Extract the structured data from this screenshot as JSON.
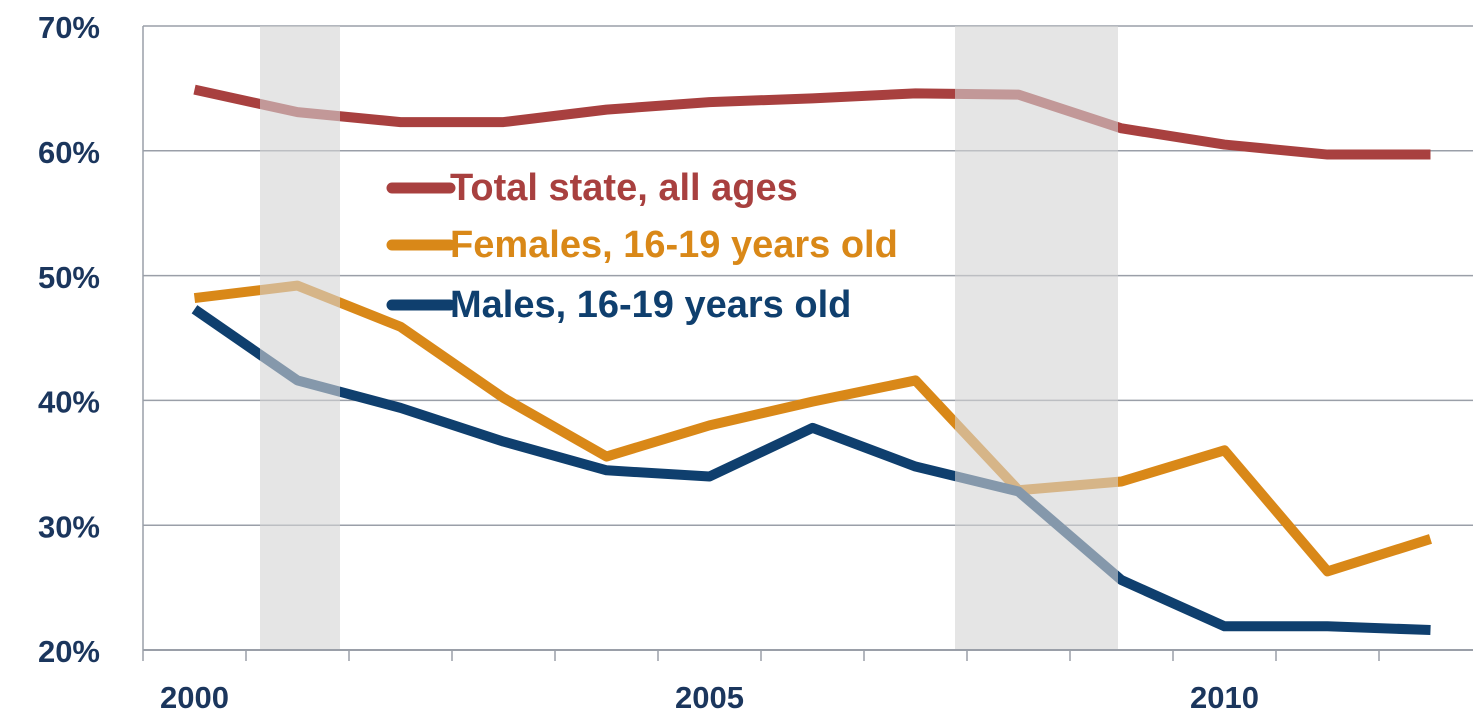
{
  "chart_data": {
    "type": "line",
    "categories": [
      "2000",
      null,
      null,
      null,
      null,
      "2005",
      null,
      null,
      null,
      null,
      "2010",
      null,
      null
    ],
    "series": [
      {
        "name": "Total state, all ages",
        "color": "#a8403f",
        "values": [
          64.9,
          63.1,
          62.3,
          62.3,
          63.3,
          63.9,
          64.2,
          64.6,
          64.5,
          61.8,
          60.5,
          59.7,
          59.7
        ]
      },
      {
        "name": "Females, 16-19 years old",
        "color": "#d98818",
        "values": [
          48.2,
          49.2,
          45.9,
          40.2,
          35.5,
          38.0,
          39.9,
          41.6,
          32.8,
          33.5,
          36.0,
          26.3,
          28.9
        ]
      },
      {
        "name": "Males, 16-19 years old",
        "color": "#0f3f6e",
        "values": [
          47.3,
          41.6,
          39.4,
          36.7,
          34.4,
          33.9,
          37.8,
          34.7,
          32.7,
          25.6,
          21.9,
          21.9,
          21.6
        ]
      }
    ],
    "ylim": [
      20,
      70
    ],
    "yticks": [
      {
        "value": 20,
        "label": "20%"
      },
      {
        "value": 30,
        "label": "30%"
      },
      {
        "value": 40,
        "label": "40%"
      },
      {
        "value": 50,
        "label": "50%"
      },
      {
        "value": 60,
        "label": "60%"
      },
      {
        "value": 70,
        "label": "70%"
      }
    ],
    "grid": true
  }
}
